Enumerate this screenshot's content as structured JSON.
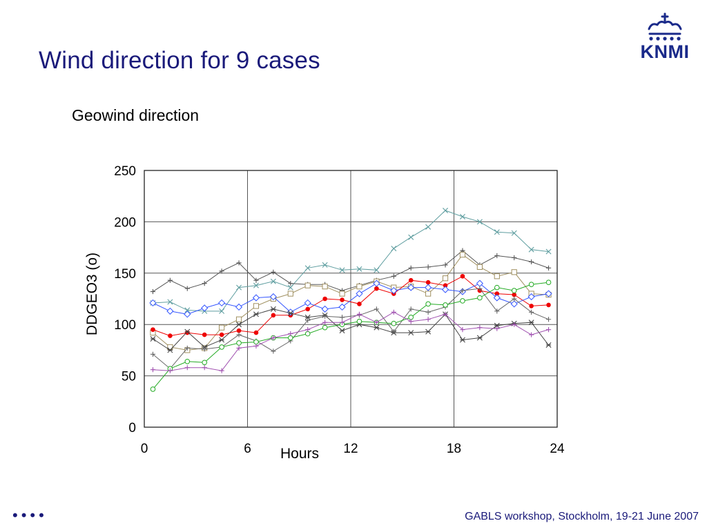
{
  "slide": {
    "title": "Wind direction for 9 cases",
    "logo_text": "KNMI",
    "footer": "GABLS workshop, Stockholm, 19-21 June 2007",
    "nav_dots": "••••"
  },
  "chart_data": {
    "type": "line",
    "title": "Geowind direction",
    "xlabel": "Hours",
    "ylabel": "DDGEO3 (o)",
    "xlim": [
      0,
      24
    ],
    "ylim": [
      0,
      250
    ],
    "xticks": [
      0,
      6,
      12,
      18,
      24
    ],
    "yticks": [
      0,
      50,
      100,
      150,
      200,
      250
    ],
    "grid": true,
    "x": [
      0.5,
      1.5,
      2.5,
      3.5,
      4.5,
      5.5,
      6.5,
      7.5,
      8.5,
      9.5,
      10.5,
      11.5,
      12.5,
      13.5,
      14.5,
      15.5,
      16.5,
      17.5,
      18.5,
      19.5,
      20.5,
      21.5,
      22.5,
      23.5
    ],
    "series": [
      {
        "color": "#5f9ea0",
        "marker": "x",
        "values": [
          121,
          122,
          114,
          113,
          113,
          136,
          138,
          142,
          136,
          155,
          158,
          153,
          154,
          153,
          174,
          185,
          195,
          211,
          205,
          200,
          190,
          189,
          173,
          171
        ]
      },
      {
        "color": "#555555",
        "marker": "plus",
        "values": [
          132,
          143,
          135,
          140,
          152,
          160,
          143,
          151,
          140,
          139,
          139,
          133,
          138,
          143,
          147,
          155,
          156,
          158,
          172,
          158,
          167,
          165,
          161,
          155
        ]
      },
      {
        "color": "#a09060",
        "marker": "square",
        "values": [
          92,
          78,
          75,
          77,
          97,
          105,
          118,
          125,
          130,
          138,
          137,
          130,
          137,
          142,
          136,
          137,
          130,
          145,
          168,
          156,
          147,
          151,
          130,
          129
        ]
      },
      {
        "color": "#ee0000",
        "marker": "dot",
        "values": [
          95,
          89,
          92,
          90,
          90,
          94,
          92,
          109,
          109,
          115,
          125,
          124,
          120,
          135,
          130,
          143,
          141,
          138,
          147,
          133,
          130,
          129,
          118,
          119
        ]
      },
      {
        "color": "#3355ff",
        "marker": "diamond",
        "values": [
          121,
          113,
          110,
          116,
          121,
          117,
          126,
          127,
          112,
          121,
          115,
          117,
          130,
          140,
          133,
          136,
          136,
          134,
          132,
          140,
          126,
          120,
          127,
          130
        ]
      },
      {
        "color": "#444444",
        "marker": "star",
        "values": [
          86,
          75,
          93,
          78,
          85,
          100,
          110,
          115,
          111,
          107,
          109,
          94,
          100,
          97,
          92,
          92,
          93,
          110,
          85,
          87,
          99,
          101,
          102,
          80
        ]
      },
      {
        "color": "#666666",
        "marker": "plus",
        "values": [
          71,
          57,
          77,
          76,
          78,
          90,
          84,
          74,
          84,
          104,
          108,
          107,
          109,
          115,
          93,
          115,
          112,
          117,
          133,
          135,
          113,
          125,
          112,
          105
        ]
      },
      {
        "color": "#22aa22",
        "marker": "circle",
        "values": [
          37,
          57,
          64,
          63,
          78,
          82,
          83,
          87,
          87,
          91,
          97,
          100,
          103,
          102,
          101,
          107,
          120,
          119,
          123,
          126,
          136,
          133,
          139,
          141
        ]
      },
      {
        "color": "#a050b0",
        "marker": "plus",
        "values": [
          56,
          55,
          58,
          58,
          55,
          77,
          79,
          87,
          91,
          95,
          102,
          102,
          110,
          102,
          112,
          103,
          105,
          110,
          95,
          97,
          96,
          100,
          90,
          95
        ]
      }
    ]
  }
}
